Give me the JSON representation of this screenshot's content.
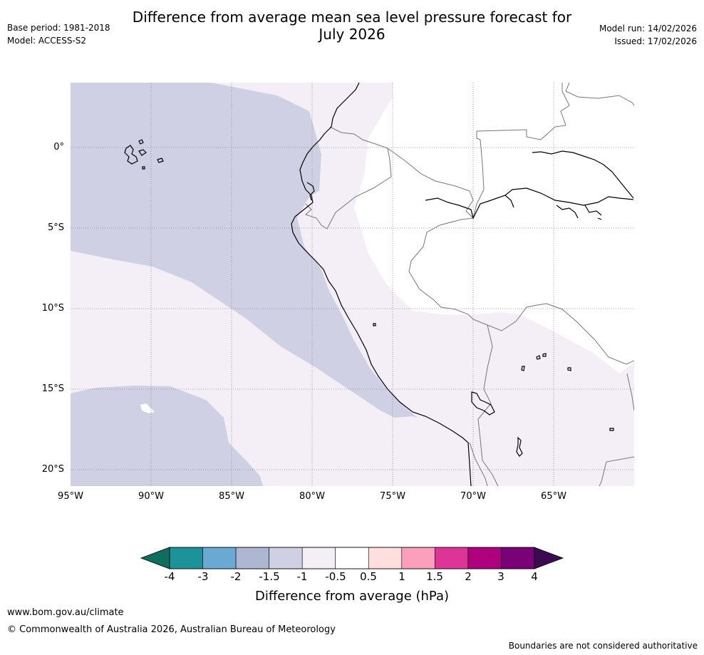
{
  "title": {
    "line1": "Difference from average mean sea level pressure forecast for",
    "line2": "July 2026"
  },
  "meta": {
    "base_period": "Base period: 1981-2018",
    "model": "Model: ACCESS-S2",
    "model_run": "Model run: 14/02/2026",
    "issued": "Issued: 17/02/2026"
  },
  "map": {
    "lat_labels": [
      {
        "value": 0,
        "label": "0°"
      },
      {
        "value": -5,
        "label": "5°S"
      },
      {
        "value": -10,
        "label": "10°S"
      },
      {
        "value": -15,
        "label": "15°S"
      },
      {
        "value": -20,
        "label": "20°S"
      }
    ],
    "lon_labels": [
      {
        "value": -95,
        "label": "95°W"
      },
      {
        "value": -90,
        "label": "90°W"
      },
      {
        "value": -85,
        "label": "85°W"
      },
      {
        "value": -80,
        "label": "80°W"
      },
      {
        "value": -75,
        "label": "75°W"
      },
      {
        "value": -70,
        "label": "70°W"
      },
      {
        "value": -65,
        "label": "65°W"
      }
    ],
    "colors": {
      "band_neg_1_5_to_neg_1": "#cfd0e3",
      "band_neg_1_to_neg_0_5": "#f4eef6",
      "band_neg_0_5_to_0_5": "#ffffff",
      "coast": "#000000",
      "border": "#777777",
      "grid": "#888888"
    }
  },
  "colorbar": {
    "title": "Difference from average (hPa)",
    "tick_labels": [
      "-4",
      "-3",
      "-2",
      "-1.5",
      "-1",
      "-0.5",
      "0.5",
      "1",
      "1.5",
      "2",
      "3",
      "4"
    ],
    "under_color": "#0e6f5f",
    "over_color": "#3b0a52",
    "colors": [
      "#1c9399",
      "#6aa9d3",
      "#adb7d2",
      "#cfd0e3",
      "#f4eef6",
      "#ffffff",
      "#fde0dd",
      "#faa0bd",
      "#dd3497",
      "#ae017e",
      "#7a0177"
    ]
  },
  "footer": {
    "url": "www.bom.gov.au/climate",
    "copyright": "© Commonwealth of Australia 2026, Australian Bureau of Meteorology",
    "disclaimer": "Boundaries are not considered authoritative"
  }
}
